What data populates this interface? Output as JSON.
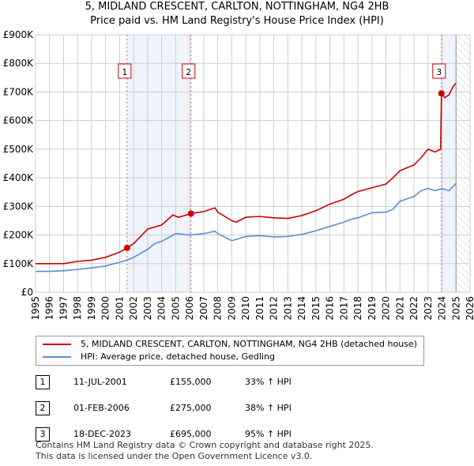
{
  "chart_data": {
    "type": "line",
    "title": "5, MIDLAND CRESCENT, CARLTON, NOTTINGHAM, NG4 2HB",
    "subtitle": "Price paid vs. HM Land Registry's House Price Index (HPI)",
    "xlim": [
      1995,
      2026
    ],
    "ylim": [
      0,
      900000
    ],
    "y_ticks": [
      {
        "v": 0,
        "l": "£0"
      },
      {
        "v": 100000,
        "l": "£100K"
      },
      {
        "v": 200000,
        "l": "£200K"
      },
      {
        "v": 300000,
        "l": "£300K"
      },
      {
        "v": 400000,
        "l": "£400K"
      },
      {
        "v": 500000,
        "l": "£500K"
      },
      {
        "v": 600000,
        "l": "£600K"
      },
      {
        "v": 700000,
        "l": "£700K"
      },
      {
        "v": 800000,
        "l": "£800K"
      },
      {
        "v": 900000,
        "l": "£900K"
      }
    ],
    "x_ticks": [
      "1995",
      "1996",
      "1997",
      "1998",
      "1999",
      "2000",
      "2001",
      "2002",
      "2003",
      "2004",
      "2005",
      "2006",
      "2007",
      "2008",
      "2009",
      "2010",
      "2011",
      "2012",
      "2013",
      "2014",
      "2015",
      "2016",
      "2017",
      "2018",
      "2019",
      "2020",
      "2021",
      "2022",
      "2023",
      "2024",
      "2025",
      "2026"
    ],
    "series": [
      {
        "name": "5, MIDLAND CRESCENT, CARLTON, NOTTINGHAM, NG4 2HB (detached house)",
        "color": "#cc0000",
        "x": [
          1995,
          1996,
          1997,
          1998,
          1999,
          2000,
          2001,
          2001.53,
          2002,
          2003,
          2004,
          2004.8,
          2005.2,
          2006.09,
          2007,
          2007.8,
          2008,
          2009,
          2009.3,
          2010,
          2011,
          2012,
          2013,
          2014,
          2015,
          2016,
          2017,
          2017.5,
          2018,
          2019,
          2020,
          2020.5,
          2021,
          2022,
          2022.5,
          2023,
          2023.5,
          2023.9,
          2023.96,
          2024.2,
          2024.5,
          2024.8,
          2025
        ],
        "y": [
          100,
          100,
          100,
          108,
          112,
          122,
          140,
          155,
          170,
          221,
          235,
          270,
          262,
          275,
          282,
          295,
          280,
          250,
          245,
          262,
          265,
          260,
          258,
          268,
          285,
          308,
          325,
          340,
          352,
          365,
          378,
          400,
          425,
          445,
          470,
          500,
          490,
          500,
          695,
          680,
          690,
          720,
          730
        ]
      },
      {
        "name": "HPI: Average price, detached house, Gedling",
        "color": "#5b8fd4",
        "x": [
          1995,
          1996,
          1997,
          1998,
          1999,
          2000,
          2001,
          2001.5,
          2002,
          2003,
          2003.5,
          2004,
          2005,
          2006,
          2007,
          2007.8,
          2008,
          2009,
          2010,
          2011,
          2012,
          2013,
          2014,
          2015,
          2016,
          2017,
          2017.5,
          2018,
          2019,
          2020,
          2020.5,
          2021,
          2022,
          2022.5,
          2023,
          2023.5,
          2024,
          2024.5,
          2025
        ],
        "y": [
          73,
          73,
          75,
          80,
          85,
          92,
          105,
          112,
          122,
          150,
          170,
          178,
          205,
          200,
          205,
          213,
          205,
          180,
          195,
          198,
          193,
          195,
          202,
          215,
          230,
          245,
          255,
          260,
          278,
          280,
          290,
          318,
          335,
          355,
          363,
          355,
          362,
          355,
          380
        ]
      }
    ],
    "y_units": "thousands GBP",
    "sales": [
      {
        "n": "1",
        "date": "11-JUL-2001",
        "x": 2001.53,
        "price": "£155,000",
        "v": 155,
        "hpi": "33% ↑ HPI"
      },
      {
        "n": "2",
        "date": "01-FEB-2006",
        "x": 2006.09,
        "price": "£275,000",
        "v": 275,
        "hpi": "38% ↑ HPI"
      },
      {
        "n": "3",
        "date": "18-DEC-2023",
        "x": 2023.96,
        "price": "£695,000",
        "v": 695,
        "hpi": "95% ↑ HPI"
      }
    ],
    "shaded": [
      [
        2001.53,
        2006.09
      ],
      [
        2023.96,
        2025.0
      ]
    ],
    "future_from": 2025.0
  },
  "footer": [
    "Contains HM Land Registry data © Crown copyright and database right 2025.",
    "This data is licensed under the Open Government Licence v3.0."
  ]
}
